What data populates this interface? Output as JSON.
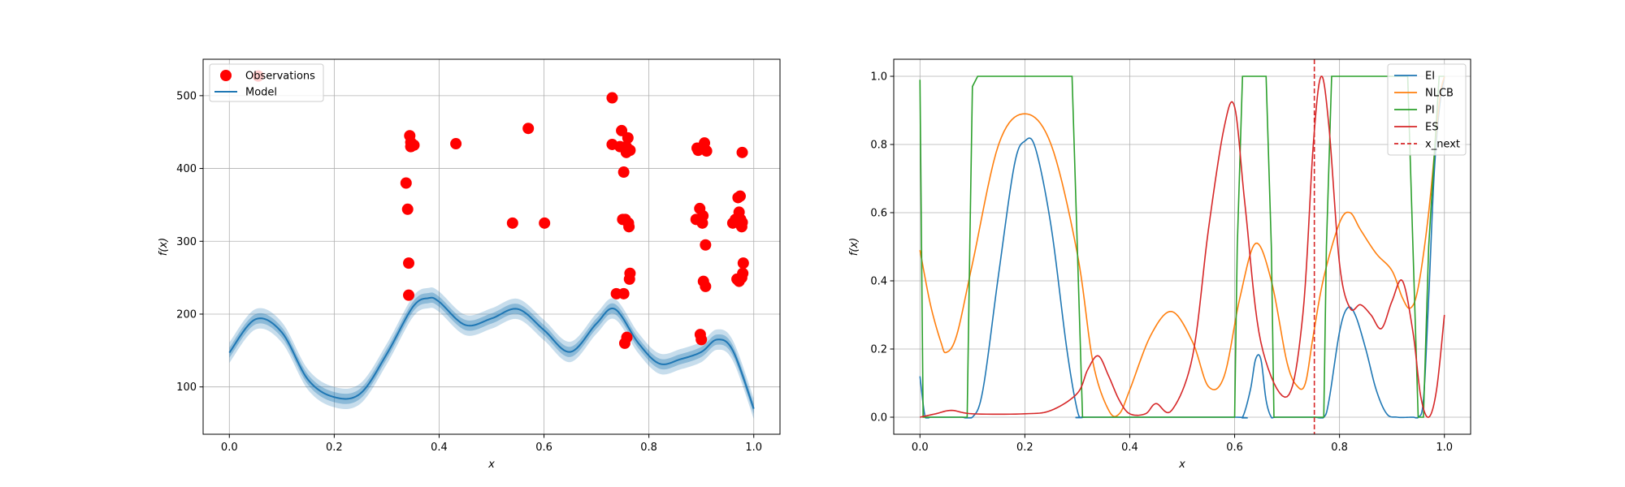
{
  "chart_data": [
    {
      "type": "scatter",
      "xlabel": "x",
      "ylabel": "f(x)",
      "xlim": [
        -0.05,
        1.05
      ],
      "ylim": [
        35,
        550
      ],
      "xticks": [
        0.0,
        0.2,
        0.4,
        0.6,
        0.8,
        1.0
      ],
      "xtick_labels": [
        "0.0",
        "0.2",
        "0.4",
        "0.6",
        "0.8",
        "1.0"
      ],
      "yticks": [
        100,
        200,
        300,
        400,
        500
      ],
      "ytick_labels": [
        "100",
        "200",
        "300",
        "400",
        "500"
      ],
      "grid": true,
      "legend_position": "top-left",
      "colors": {
        "observations": "#ff0000",
        "model": "#1f77b4"
      },
      "legend": [
        {
          "label": "Observations",
          "kind": "marker",
          "color": "#ff0000"
        },
        {
          "label": "Model",
          "kind": "line",
          "color": "#1f77b4"
        }
      ],
      "observations": {
        "name": "Observations",
        "x": [
          0.055,
          0.337,
          0.34,
          0.342,
          0.342,
          0.344,
          0.346,
          0.346,
          0.352,
          0.432,
          0.54,
          0.57,
          0.601,
          0.73,
          0.73,
          0.738,
          0.745,
          0.748,
          0.75,
          0.752,
          0.752,
          0.754,
          0.755,
          0.757,
          0.757,
          0.758,
          0.76,
          0.761,
          0.762,
          0.763,
          0.764,
          0.764,
          0.89,
          0.892,
          0.894,
          0.897,
          0.898,
          0.9,
          0.902,
          0.903,
          0.904,
          0.906,
          0.908,
          0.908,
          0.91,
          0.96,
          0.965,
          0.968,
          0.97,
          0.972,
          0.972,
          0.974,
          0.975,
          0.977,
          0.977,
          0.978,
          0.978,
          0.979,
          0.98
        ],
        "y": [
          527,
          380,
          344,
          226,
          270,
          445,
          430,
          436,
          432,
          434,
          325,
          455,
          325,
          497,
          433,
          228,
          430,
          452,
          330,
          395,
          228,
          160,
          330,
          430,
          422,
          168,
          442,
          325,
          320,
          248,
          256,
          425,
          330,
          428,
          425,
          345,
          172,
          165,
          325,
          335,
          245,
          435,
          238,
          295,
          424,
          325,
          330,
          248,
          360,
          340,
          245,
          362,
          330,
          250,
          320,
          422,
          326,
          256,
          270
        ]
      },
      "model": {
        "name": "Model",
        "x": [
          0.0,
          0.05,
          0.1,
          0.15,
          0.2,
          0.25,
          0.3,
          0.35,
          0.38,
          0.4,
          0.45,
          0.5,
          0.55,
          0.6,
          0.65,
          0.7,
          0.735,
          0.78,
          0.82,
          0.86,
          0.9,
          0.93,
          0.96,
          1.0
        ],
        "y": [
          147,
          193,
          175,
          110,
          86,
          91,
          145,
          210,
          222,
          217,
          185,
          194,
          207,
          178,
          148,
          187,
          207,
          160,
          132,
          138,
          148,
          165,
          150,
          70
        ],
        "band_inner": 7,
        "band_outer": 14
      }
    },
    {
      "type": "line",
      "xlabel": "x",
      "ylabel": "f(x)",
      "xlim": [
        -0.05,
        1.05
      ],
      "ylim": [
        -0.05,
        1.05
      ],
      "xticks": [
        0.0,
        0.2,
        0.4,
        0.6,
        0.8,
        1.0
      ],
      "xtick_labels": [
        "0.0",
        "0.2",
        "0.4",
        "0.6",
        "0.8",
        "1.0"
      ],
      "yticks": [
        0.0,
        0.2,
        0.4,
        0.6,
        0.8,
        1.0
      ],
      "ytick_labels": [
        "0.0",
        "0.2",
        "0.4",
        "0.6",
        "0.8",
        "1.0"
      ],
      "grid": true,
      "legend_position": "top-right",
      "x_next": {
        "name": "x_next",
        "x": 0.752,
        "color": "#d62728",
        "style": "dashed"
      },
      "series": [
        {
          "name": "EI",
          "color": "#1f77b4",
          "x": [
            0.0,
            0.01,
            0.02,
            0.05,
            0.08,
            0.1,
            0.12,
            0.15,
            0.18,
            0.2,
            0.22,
            0.25,
            0.28,
            0.3,
            0.31,
            0.32,
            0.6,
            0.615,
            0.63,
            0.64,
            0.65,
            0.66,
            0.67,
            0.68,
            0.75,
            0.77,
            0.78,
            0.8,
            0.815,
            0.83,
            0.85,
            0.87,
            0.89,
            0.91,
            0.94,
            0.95,
            0.96,
            0.97,
            0.98,
            0.99,
            1.0
          ],
          "y": [
            0.12,
            0.0,
            0.0,
            0.0,
            0.0,
            0.0,
            0.08,
            0.42,
            0.74,
            0.81,
            0.79,
            0.56,
            0.2,
            0.02,
            0.0,
            0.0,
            0.0,
            0.0,
            0.08,
            0.17,
            0.17,
            0.05,
            0.0,
            0.0,
            0.0,
            0.0,
            0.05,
            0.25,
            0.32,
            0.3,
            0.2,
            0.08,
            0.01,
            0.0,
            0.0,
            0.0,
            0.05,
            0.35,
            0.7,
            0.9,
            1.0
          ]
        },
        {
          "name": "NLCB",
          "color": "#ff7f0e",
          "x": [
            0.0,
            0.02,
            0.04,
            0.05,
            0.07,
            0.1,
            0.15,
            0.2,
            0.25,
            0.3,
            0.33,
            0.36,
            0.38,
            0.4,
            0.44,
            0.48,
            0.52,
            0.55,
            0.58,
            0.61,
            0.64,
            0.67,
            0.7,
            0.72,
            0.735,
            0.75,
            0.77,
            0.8,
            0.82,
            0.84,
            0.87,
            0.9,
            0.92,
            0.935,
            0.95,
            0.97,
            0.99,
            1.0
          ],
          "y": [
            0.49,
            0.33,
            0.22,
            0.19,
            0.24,
            0.45,
            0.8,
            0.89,
            0.8,
            0.48,
            0.16,
            0.02,
            0.01,
            0.08,
            0.24,
            0.31,
            0.22,
            0.09,
            0.12,
            0.35,
            0.51,
            0.4,
            0.16,
            0.09,
            0.1,
            0.24,
            0.41,
            0.57,
            0.6,
            0.55,
            0.48,
            0.43,
            0.35,
            0.32,
            0.38,
            0.6,
            0.92,
            1.0
          ]
        },
        {
          "name": "PI",
          "color": "#2ca02c",
          "x": [
            0.0,
            0.003,
            0.006,
            0.01,
            0.09,
            0.095,
            0.1,
            0.11,
            0.29,
            0.3,
            0.31,
            0.6,
            0.605,
            0.615,
            0.66,
            0.67,
            0.675,
            0.77,
            0.775,
            0.785,
            0.93,
            0.94,
            0.95,
            0.96,
            0.97,
            0.99,
            1.0
          ],
          "y": [
            0.99,
            0.5,
            0.0,
            0.0,
            0.0,
            0.5,
            0.97,
            1.0,
            1.0,
            0.5,
            0.0,
            0.0,
            0.5,
            1.0,
            1.0,
            0.5,
            0.0,
            0.0,
            0.5,
            1.0,
            1.0,
            0.5,
            0.0,
            0.0,
            0.5,
            1.0,
            1.0
          ]
        },
        {
          "name": "ES",
          "color": "#d62728",
          "x": [
            0.0,
            0.03,
            0.06,
            0.1,
            0.2,
            0.25,
            0.3,
            0.32,
            0.34,
            0.36,
            0.38,
            0.4,
            0.43,
            0.45,
            0.48,
            0.52,
            0.55,
            0.58,
            0.6,
            0.62,
            0.65,
            0.7,
            0.73,
            0.75,
            0.765,
            0.78,
            0.8,
            0.82,
            0.84,
            0.86,
            0.88,
            0.9,
            0.92,
            0.94,
            0.955,
            0.97,
            0.985,
            1.0
          ],
          "y": [
            0.0,
            0.01,
            0.02,
            0.01,
            0.01,
            0.02,
            0.07,
            0.14,
            0.18,
            0.12,
            0.05,
            0.01,
            0.01,
            0.04,
            0.02,
            0.18,
            0.55,
            0.85,
            0.91,
            0.62,
            0.22,
            0.06,
            0.3,
            0.8,
            1.0,
            0.85,
            0.45,
            0.32,
            0.33,
            0.3,
            0.26,
            0.34,
            0.4,
            0.25,
            0.06,
            0.0,
            0.08,
            0.3
          ]
        }
      ]
    }
  ]
}
